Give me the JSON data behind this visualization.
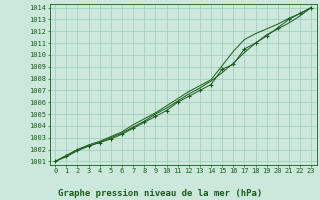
{
  "title": "Graphe pression niveau de la mer (hPa)",
  "xlabel_hours": [
    0,
    1,
    2,
    3,
    4,
    5,
    6,
    7,
    8,
    9,
    10,
    11,
    12,
    13,
    14,
    15,
    16,
    17,
    18,
    19,
    20,
    21,
    22,
    23
  ],
  "y_measured": [
    1001.0,
    1001.5,
    1002.0,
    1002.3,
    1002.6,
    1002.9,
    1003.3,
    1003.8,
    1004.3,
    1004.8,
    1005.3,
    1006.0,
    1006.5,
    1007.0,
    1007.5,
    1008.8,
    1009.2,
    1010.5,
    1011.0,
    1011.6,
    1012.3,
    1013.0,
    1013.5,
    1014.0
  ],
  "y_smooth1": [
    1001.0,
    1001.4,
    1001.9,
    1002.3,
    1002.6,
    1003.0,
    1003.4,
    1003.9,
    1004.4,
    1005.0,
    1005.5,
    1006.1,
    1006.7,
    1007.2,
    1007.8,
    1008.5,
    1009.3,
    1010.2,
    1011.0,
    1011.7,
    1012.2,
    1012.7,
    1013.3,
    1014.0
  ],
  "y_smooth2": [
    1001.0,
    1001.5,
    1002.0,
    1002.4,
    1002.7,
    1003.1,
    1003.5,
    1004.1,
    1004.6,
    1005.1,
    1005.7,
    1006.3,
    1006.9,
    1007.4,
    1007.9,
    1009.1,
    1010.3,
    1011.3,
    1011.8,
    1012.2,
    1012.6,
    1013.1,
    1013.5,
    1014.0
  ],
  "line_color": "#1a5c1a",
  "bg_color": "#cce8dd",
  "grid_color": "#9dc9b8",
  "text_color": "#1a5c1a",
  "ylim": [
    1001,
    1014
  ],
  "xlim": [
    0,
    23
  ],
  "yticks": [
    1001,
    1002,
    1003,
    1004,
    1005,
    1006,
    1007,
    1008,
    1009,
    1010,
    1011,
    1012,
    1013,
    1014
  ],
  "xticks": [
    0,
    1,
    2,
    3,
    4,
    5,
    6,
    7,
    8,
    9,
    10,
    11,
    12,
    13,
    14,
    15,
    16,
    17,
    18,
    19,
    20,
    21,
    22,
    23
  ],
  "title_fontsize": 6.5,
  "tick_fontsize": 5.0
}
